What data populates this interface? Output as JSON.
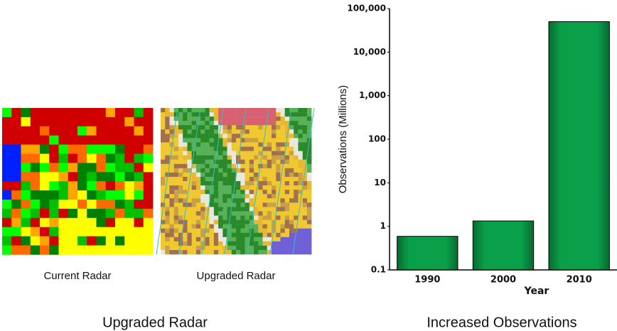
{
  "figure": {
    "left_caption": "Upgraded Radar",
    "right_caption": "Increased Observations",
    "images": [
      {
        "caption": "Current Radar"
      },
      {
        "caption": "Upgraded Radar"
      }
    ]
  },
  "chart_data": {
    "type": "bar",
    "y_label": "Observations (Millions)",
    "x_label": "Year",
    "categories": [
      "1990",
      "2000",
      "2010"
    ],
    "values": [
      0.59,
      1.33,
      50000
    ],
    "color": "#0aa04a",
    "yscale": "log",
    "ylim": [
      0.1,
      100000
    ],
    "yticks": [
      0.1,
      1,
      10,
      100,
      {
        "value": 1000,
        "label": "1,000"
      },
      {
        "value": 10000,
        "label": "10,000"
      },
      {
        "value": 100000,
        "label": "100,000"
      }
    ],
    "grid": false
  }
}
